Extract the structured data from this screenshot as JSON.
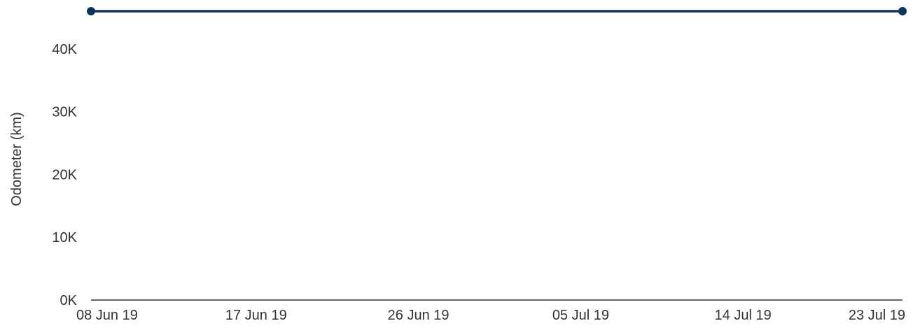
{
  "chart_data": {
    "type": "line",
    "xlabel": "",
    "ylabel": "Odometer (km)",
    "x_ticks": [
      "08 Jun 19",
      "17 Jun 19",
      "26 Jun 19",
      "05 Jul 19",
      "14 Jul 19",
      "23 Jul 19"
    ],
    "y_ticks": [
      "0K",
      "10K",
      "20K",
      "30K",
      "40K"
    ],
    "ylim": [
      0,
      46000
    ],
    "xlim": [
      "2019-06-08",
      "2019-07-23"
    ],
    "grid": false,
    "legend": "none",
    "series": [
      {
        "color": "#0d3557",
        "points": [
          {
            "x": "2019-06-08",
            "y": 46000
          },
          {
            "x": "2019-07-23",
            "y": 46000
          }
        ]
      }
    ]
  }
}
